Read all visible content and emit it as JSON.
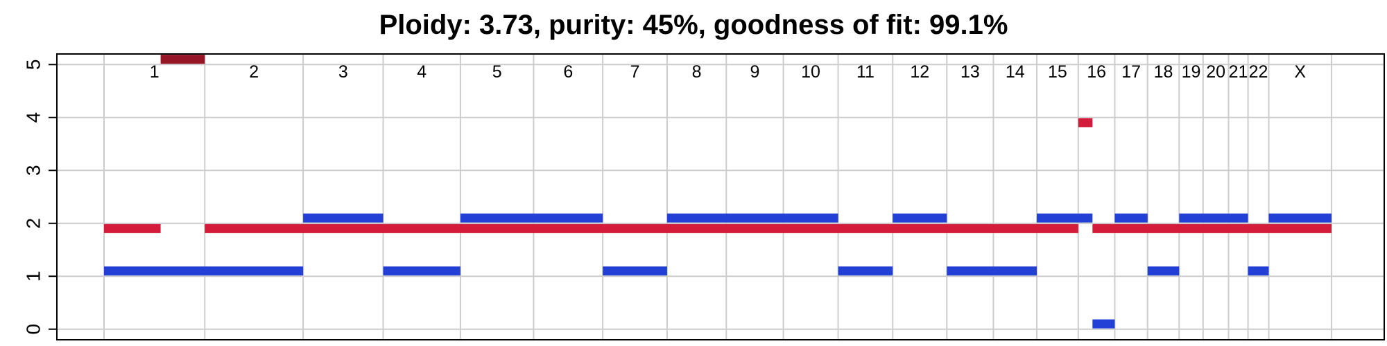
{
  "chart_data": {
    "type": "segment",
    "title": "Ploidy: 3.73, purity: 45%, goodness of fit: 99.1%",
    "xlabel": "",
    "ylabel": "",
    "ylim": [
      -0.2,
      5.2
    ],
    "yticks": [
      0,
      1,
      2,
      3,
      4,
      5
    ],
    "grid": true,
    "colors": {
      "major": "#d41c3a",
      "minor": "#2340d6",
      "capped": "#961626",
      "grid": "#cccccc"
    },
    "chromosomes": [
      {
        "label": "1",
        "start": 0.0,
        "end": 249.25
      },
      {
        "label": "2",
        "start": 249.25,
        "end": 492.45
      },
      {
        "label": "3",
        "start": 492.45,
        "end": 690.47
      },
      {
        "label": "4",
        "start": 690.47,
        "end": 881.62
      },
      {
        "label": "5",
        "start": 881.62,
        "end": 1062.53
      },
      {
        "label": "6",
        "start": 1062.53,
        "end": 1233.65
      },
      {
        "label": "7",
        "start": 1233.65,
        "end": 1392.79
      },
      {
        "label": "8",
        "start": 1392.79,
        "end": 1539.16
      },
      {
        "label": "9",
        "start": 1539.16,
        "end": 1680.37
      },
      {
        "label": "10",
        "start": 1680.37,
        "end": 1815.9
      },
      {
        "label": "11",
        "start": 1815.9,
        "end": 1950.9
      },
      {
        "label": "12",
        "start": 1950.9,
        "end": 2084.75
      },
      {
        "label": "13",
        "start": 2084.75,
        "end": 2199.92
      },
      {
        "label": "14",
        "start": 2199.92,
        "end": 2307.27
      },
      {
        "label": "15",
        "start": 2307.27,
        "end": 2409.8
      },
      {
        "label": "16",
        "start": 2409.8,
        "end": 2500.15
      },
      {
        "label": "17",
        "start": 2500.15,
        "end": 2581.35
      },
      {
        "label": "18",
        "start": 2581.35,
        "end": 2659.43
      },
      {
        "label": "19",
        "start": 2659.43,
        "end": 2718.55
      },
      {
        "label": "20",
        "start": 2718.55,
        "end": 2781.58
      },
      {
        "label": "21",
        "start": 2781.58,
        "end": 2829.71
      },
      {
        "label": "22",
        "start": 2829.71,
        "end": 2881.01
      },
      {
        "label": "X",
        "start": 2881.01,
        "end": 3036.28
      }
    ],
    "series": [
      {
        "role": "major",
        "color": "#d41c3a",
        "segments": [
          {
            "x0": 0.0,
            "x1": 140.0,
            "y": 1.9
          },
          {
            "x0": 140.0,
            "x1": 249.25,
            "y": 5.1,
            "capped": true
          },
          {
            "x0": 249.25,
            "x1": 2409.8,
            "y": 1.9
          },
          {
            "x0": 2409.8,
            "x1": 2445.0,
            "y": 3.9
          },
          {
            "x0": 2445.0,
            "x1": 3036.28,
            "y": 1.9
          }
        ]
      },
      {
        "role": "minor",
        "color": "#2340d6",
        "segments": [
          {
            "x0": 0.0,
            "x1": 492.45,
            "y": 1.1
          },
          {
            "x0": 492.45,
            "x1": 690.47,
            "y": 2.1
          },
          {
            "x0": 690.47,
            "x1": 881.62,
            "y": 1.1
          },
          {
            "x0": 881.62,
            "x1": 1233.65,
            "y": 2.1
          },
          {
            "x0": 1233.65,
            "x1": 1392.79,
            "y": 1.1
          },
          {
            "x0": 1392.79,
            "x1": 1815.9,
            "y": 2.1
          },
          {
            "x0": 1815.9,
            "x1": 1950.9,
            "y": 1.1
          },
          {
            "x0": 1950.9,
            "x1": 2084.75,
            "y": 2.1
          },
          {
            "x0": 2084.75,
            "x1": 2307.27,
            "y": 1.1
          },
          {
            "x0": 2307.27,
            "x1": 2445.0,
            "y": 2.1
          },
          {
            "x0": 2445.0,
            "x1": 2500.15,
            "y": 0.1
          },
          {
            "x0": 2500.15,
            "x1": 2581.35,
            "y": 2.1
          },
          {
            "x0": 2581.35,
            "x1": 2659.43,
            "y": 1.1
          },
          {
            "x0": 2659.43,
            "x1": 2829.71,
            "y": 2.1
          },
          {
            "x0": 2829.71,
            "x1": 2881.01,
            "y": 1.1
          },
          {
            "x0": 2881.01,
            "x1": 3036.28,
            "y": 2.1
          }
        ]
      }
    ]
  }
}
